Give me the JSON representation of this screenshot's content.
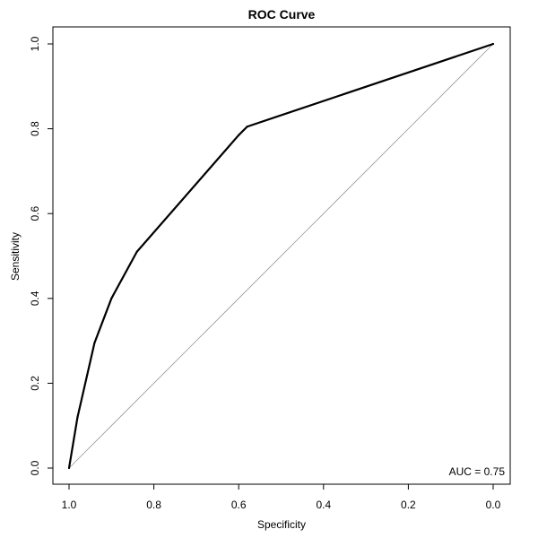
{
  "chart_data": {
    "type": "line",
    "title": "ROC Curve",
    "xlabel": "Specificity",
    "ylabel": "Sensitivity",
    "xlim": [
      1.0,
      0.0
    ],
    "ylim": [
      0.0,
      1.0
    ],
    "x_reversed": true,
    "grid": false,
    "x_ticks": [
      "1.0",
      "0.8",
      "0.6",
      "0.4",
      "0.2",
      "0.0"
    ],
    "y_ticks": [
      "0.0",
      "0.2",
      "0.4",
      "0.6",
      "0.8",
      "1.0"
    ],
    "annotation": "AUC = 0.75",
    "series": [
      {
        "x": [
          1.0,
          0.98,
          0.94,
          0.9,
          0.84,
          0.6,
          0.58,
          0.0
        ],
        "y": [
          0.0,
          0.12,
          0.295,
          0.4,
          0.51,
          0.785,
          0.805,
          1.0
        ]
      }
    ],
    "reference_line": {
      "x": [
        1.0,
        0.0
      ],
      "y": [
        0.0,
        1.0
      ]
    }
  }
}
